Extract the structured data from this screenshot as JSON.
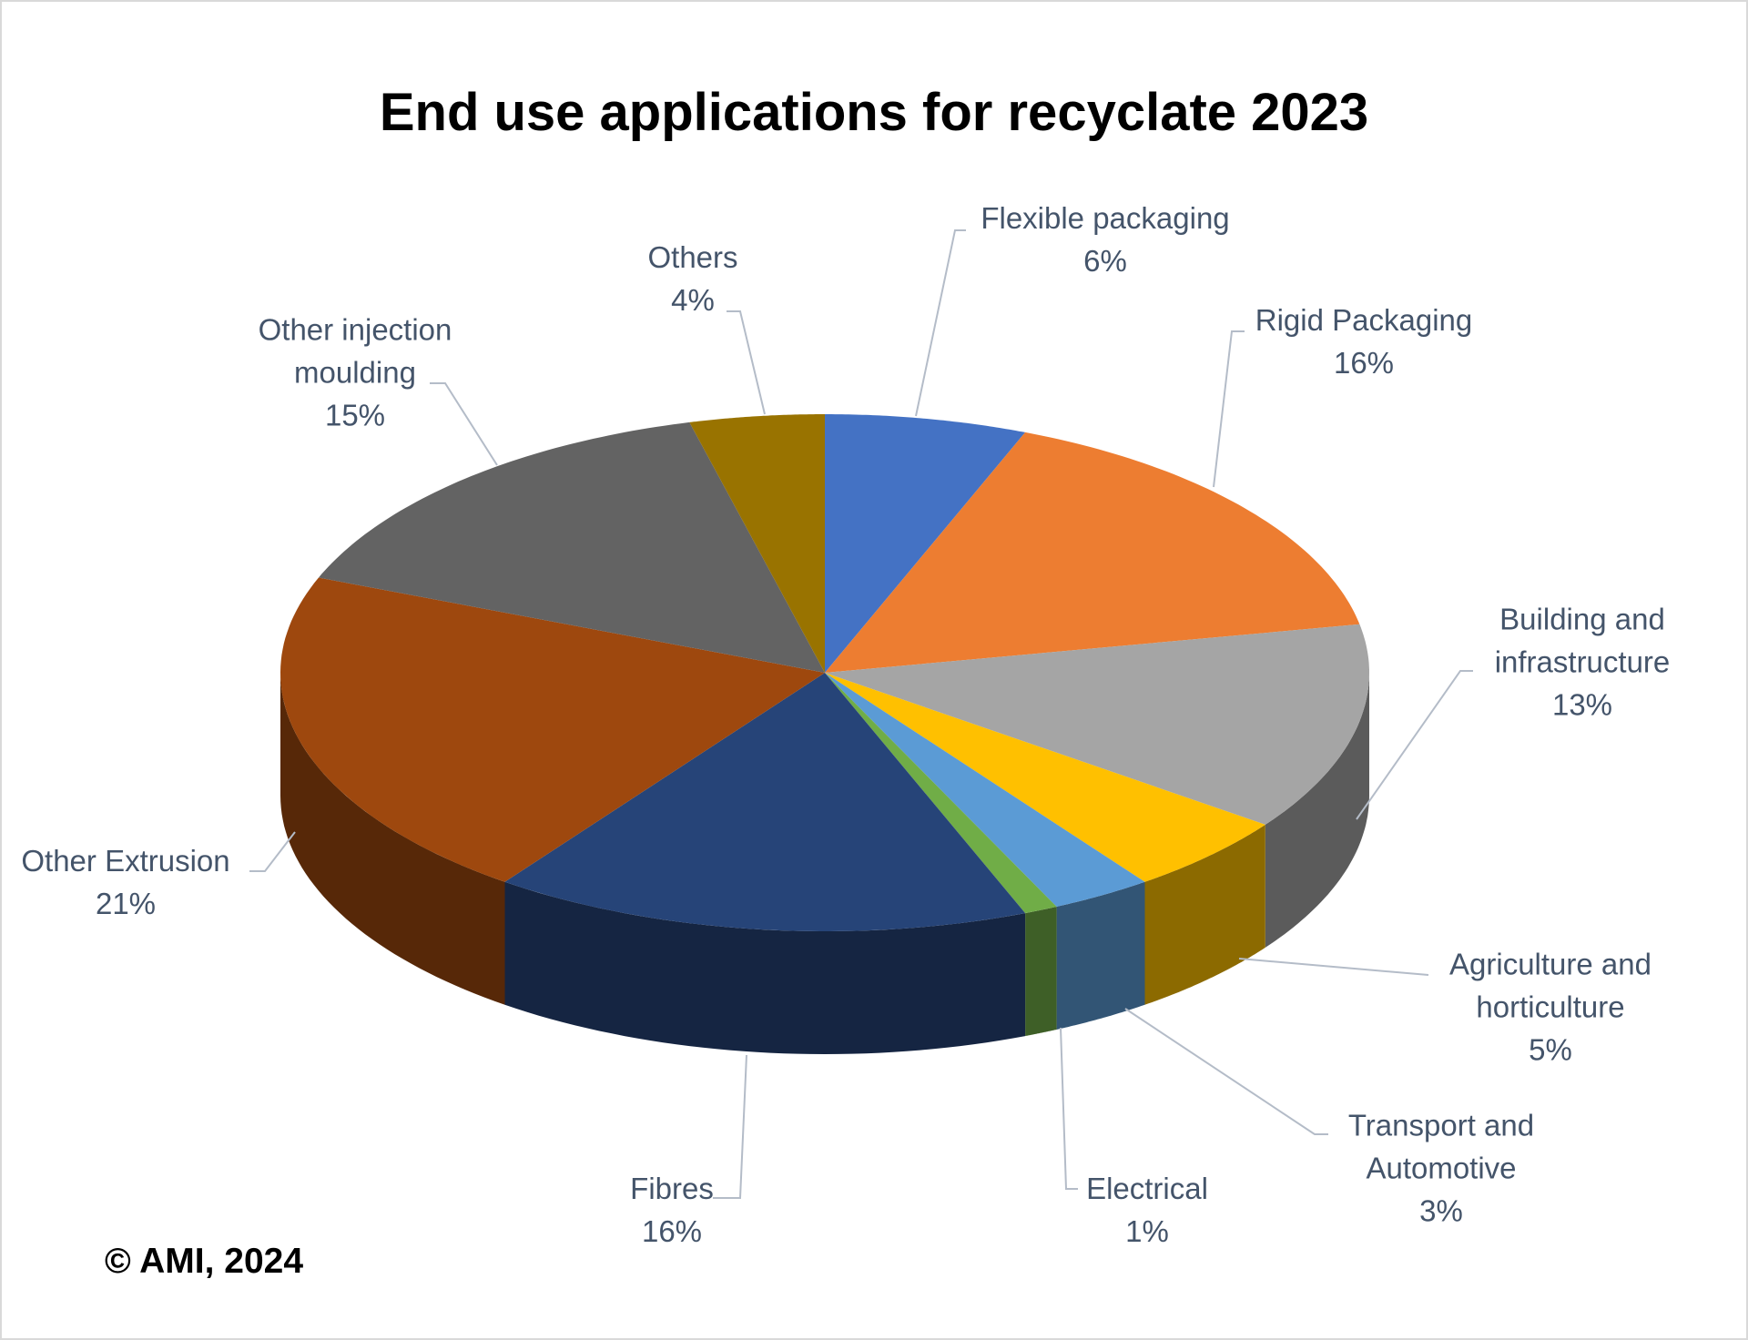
{
  "chart_data": {
    "type": "pie",
    "style": "3d",
    "title": "End use applications for recyclate 2023",
    "start": "top, clockwise",
    "slices": [
      {
        "label": "Flexible packaging",
        "value": 6,
        "display": "6%",
        "color": "#4472C4"
      },
      {
        "label": "Rigid Packaging",
        "value": 16,
        "display": "16%",
        "color": "#ED7D31"
      },
      {
        "label": "Building and infrastructure",
        "value": 13,
        "display": "13%",
        "color": "#A5A5A5"
      },
      {
        "label": "Agriculture and horticulture",
        "value": 5,
        "display": "5%",
        "color": "#FFC000"
      },
      {
        "label": "Transport and Automotive",
        "value": 3,
        "display": "3%",
        "color": "#5B9BD5"
      },
      {
        "label": "Electrical",
        "value": 1,
        "display": "1%",
        "color": "#70AD47"
      },
      {
        "label": "Fibres",
        "value": 16,
        "display": "16%",
        "color": "#264478"
      },
      {
        "label": "Other Extrusion",
        "value": 21,
        "display": "21%",
        "color": "#9E480E"
      },
      {
        "label": "Other injection moulding",
        "value": 15,
        "display": "15%",
        "color": "#636363"
      },
      {
        "label": "Others",
        "value": 4,
        "display": "4%",
        "color": "#997300"
      }
    ],
    "legend": "none, data labels with leader lines"
  },
  "copyright": "© AMI, 2024"
}
